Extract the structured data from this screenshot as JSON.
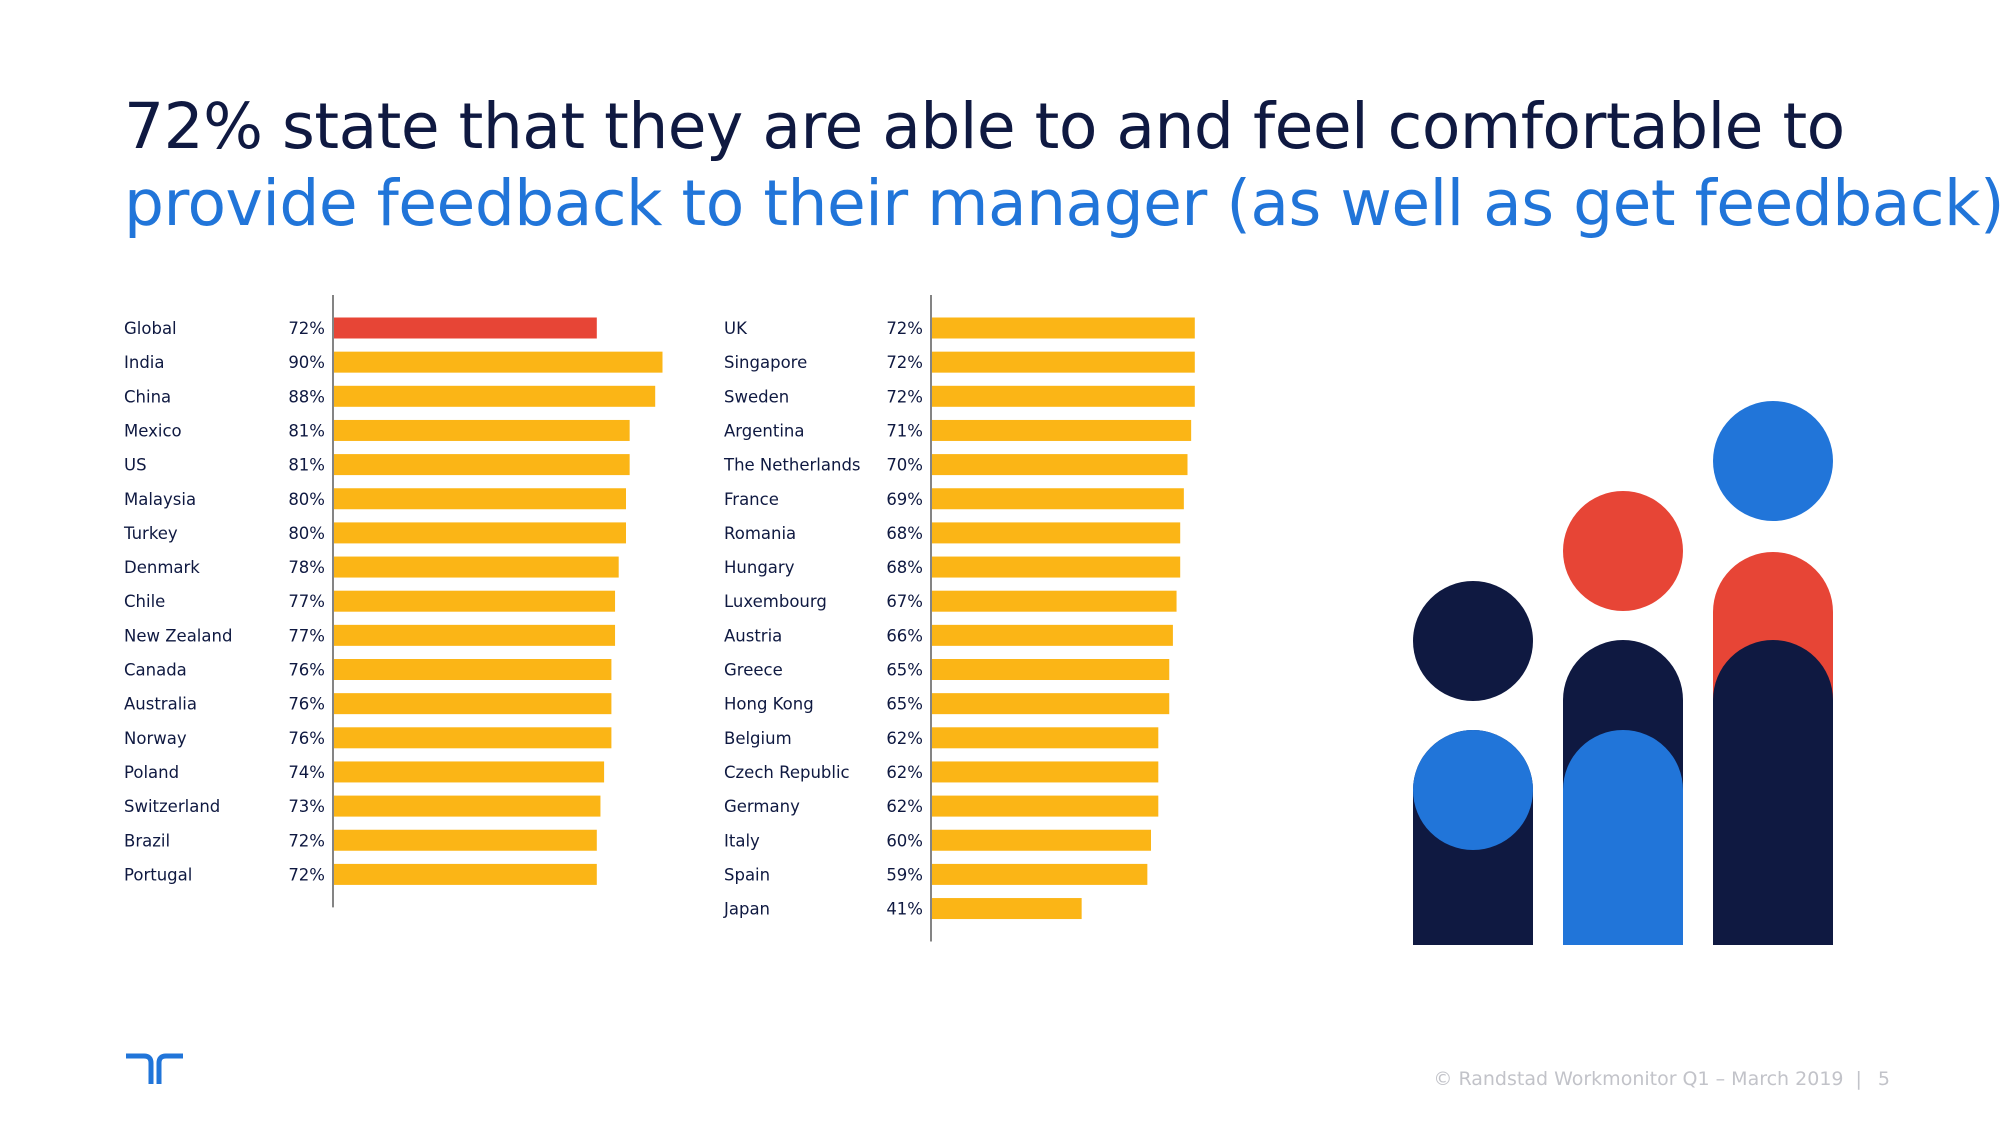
{
  "title": {
    "line1": "72% state that they are able to and feel comfortable to",
    "line2": "provide feedback to their manager (as well as get feedback)."
  },
  "colors": {
    "highlight_bar": "#e74536",
    "bar": "#fbb516",
    "navy": "#0f1941",
    "blue": "#2175d9",
    "red": "#e74536"
  },
  "chart_data": [
    {
      "type": "bar",
      "orientation": "horizontal",
      "value_unit": "%",
      "highlight": "Global",
      "categories": [
        "Global",
        "India",
        "China",
        "Mexico",
        "US",
        "Malaysia",
        "Turkey",
        "Denmark",
        "Chile",
        "New Zealand",
        "Canada",
        "Australia",
        "Norway",
        "Poland",
        "Switzerland",
        "Brazil",
        "Portugal"
      ],
      "values": [
        72,
        90,
        88,
        81,
        81,
        80,
        80,
        78,
        77,
        77,
        76,
        76,
        76,
        74,
        73,
        72,
        72
      ],
      "labels": [
        "72%",
        "90%",
        "88%",
        "81%",
        "81%",
        "80%",
        "80%",
        "78%",
        "77%",
        "77%",
        "76%",
        "76%",
        "76%",
        "74%",
        "73%",
        "72%",
        "72%"
      ]
    },
    {
      "type": "bar",
      "orientation": "horizontal",
      "value_unit": "%",
      "highlight": null,
      "categories": [
        "UK",
        "Singapore",
        "Sweden",
        "Argentina",
        "The Netherlands",
        "France",
        "Romania",
        "Hungary",
        "Luxembourg",
        "Austria",
        "Greece",
        "Hong Kong",
        "Belgium",
        "Czech Republic",
        "Germany",
        "Italy",
        "Spain",
        "Japan"
      ],
      "values": [
        72,
        72,
        72,
        71,
        70,
        69,
        68,
        68,
        67,
        66,
        65,
        65,
        62,
        62,
        62,
        60,
        59,
        41
      ],
      "labels": [
        "72%",
        "72%",
        "72%",
        "71%",
        "70%",
        "69%",
        "68%",
        "68%",
        "67%",
        "66%",
        "65%",
        "65%",
        "62%",
        "62%",
        "62%",
        "60%",
        "59%",
        "41%"
      ]
    }
  ],
  "footer": {
    "source": "© Randstad Workmonitor Q1 – March 2019",
    "separator": "|",
    "page_number": "5"
  }
}
